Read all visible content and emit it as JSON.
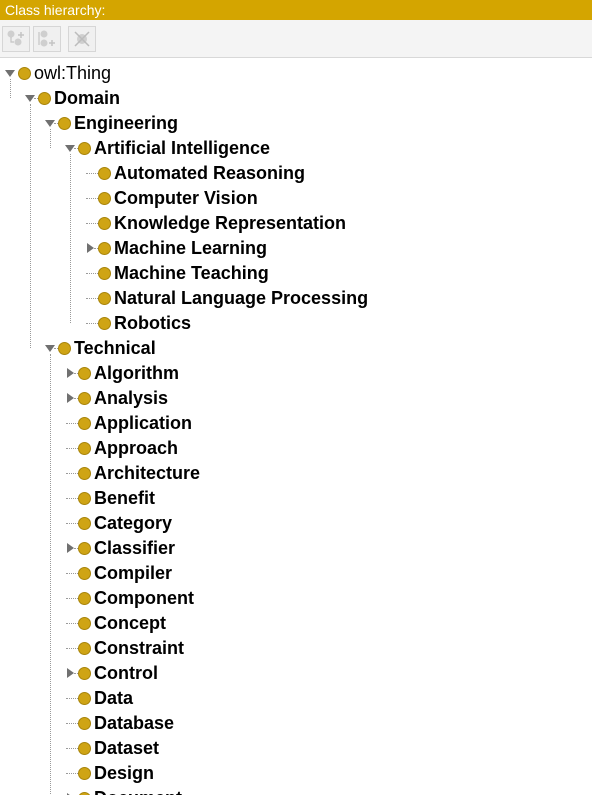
{
  "panel": {
    "title": "Class hierarchy:"
  },
  "toolbar": [
    {
      "name": "add-subclass-button",
      "icon": "add-subclass-icon"
    },
    {
      "name": "add-sibling-button",
      "icon": "add-sibling-icon"
    },
    {
      "name": "delete-class-button",
      "icon": "delete-class-icon"
    }
  ],
  "colors": {
    "title_bar": "#d4a500",
    "class_bullet": "#cfa414"
  },
  "tree": {
    "label": "owl:Thing",
    "expanded": true,
    "children": [
      {
        "label": "Domain",
        "expanded": true,
        "children": [
          {
            "label": "Engineering",
            "expanded": true,
            "children": [
              {
                "label": "Artificial Intelligence",
                "expanded": true,
                "children": [
                  {
                    "label": "Automated Reasoning"
                  },
                  {
                    "label": "Computer Vision"
                  },
                  {
                    "label": "Knowledge Representation"
                  },
                  {
                    "label": "Machine Learning",
                    "expanded": false,
                    "has_children": true
                  },
                  {
                    "label": "Machine Teaching"
                  },
                  {
                    "label": "Natural Language Processing"
                  },
                  {
                    "label": "Robotics"
                  }
                ]
              }
            ]
          },
          {
            "label": "Technical",
            "expanded": true,
            "children": [
              {
                "label": "Algorithm",
                "expanded": false,
                "has_children": true
              },
              {
                "label": "Analysis",
                "expanded": false,
                "has_children": true
              },
              {
                "label": "Application"
              },
              {
                "label": "Approach"
              },
              {
                "label": "Architecture"
              },
              {
                "label": "Benefit"
              },
              {
                "label": "Category"
              },
              {
                "label": "Classifier",
                "expanded": false,
                "has_children": true
              },
              {
                "label": "Compiler"
              },
              {
                "label": "Component"
              },
              {
                "label": "Concept"
              },
              {
                "label": "Constraint"
              },
              {
                "label": "Control",
                "expanded": false,
                "has_children": true
              },
              {
                "label": "Data"
              },
              {
                "label": "Database"
              },
              {
                "label": "Dataset"
              },
              {
                "label": "Design"
              },
              {
                "label": "Document",
                "expanded": false,
                "has_children": true
              }
            ]
          }
        ]
      }
    ]
  }
}
